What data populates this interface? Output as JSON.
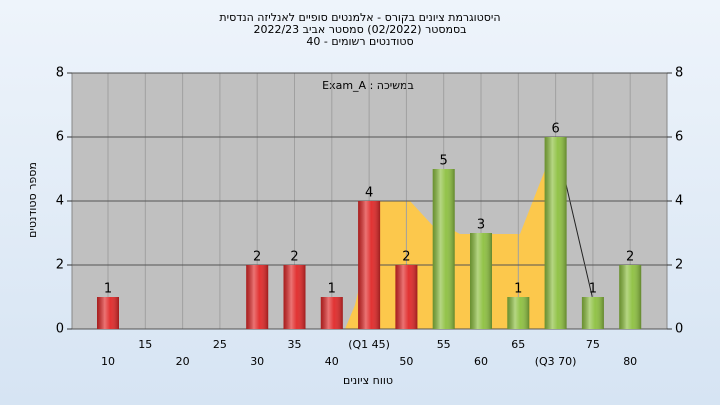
{
  "chart_data": {
    "type": "bar",
    "title": "היסטוגרמת ציונים בקורס - אלמנטים סופיים לאנליזה הנדסית",
    "subtitle": "בסמסטר (02/2022) סמסטר אביב 2022/23",
    "subtitle2": "סטודנטים רשומים - 40",
    "annotation": "במשיכה : Exam_A",
    "x_label": "טווח ציונים",
    "y_label": "מספר סטודנטים",
    "categories": [
      "10",
      "15",
      "20",
      "25",
      "30",
      "35",
      "40",
      "(Q1 45)",
      "50",
      "55",
      "60",
      "65",
      "(Q3 70)",
      "75",
      "80"
    ],
    "values": [
      1,
      0,
      0,
      0,
      2,
      2,
      1,
      4,
      2,
      5,
      3,
      1,
      6,
      1,
      2
    ],
    "value_labels": [
      "1",
      null,
      null,
      null,
      "2",
      "2",
      "1",
      "4",
      "2",
      "5",
      "3",
      "1",
      "6",
      "1",
      "2"
    ],
    "colors": [
      "#e02828",
      "#e02828",
      "#e02828",
      "#e02828",
      "#e02828",
      "#e02828",
      "#e02828",
      "#e02828",
      "#e02828",
      "#8dc040",
      "#8dc040",
      "#8dc040",
      "#8dc040",
      "#8dc040",
      "#8dc040"
    ],
    "ylim": [
      0,
      8
    ],
    "yticks": [
      0,
      2,
      4,
      6,
      8
    ],
    "grid": true
  }
}
